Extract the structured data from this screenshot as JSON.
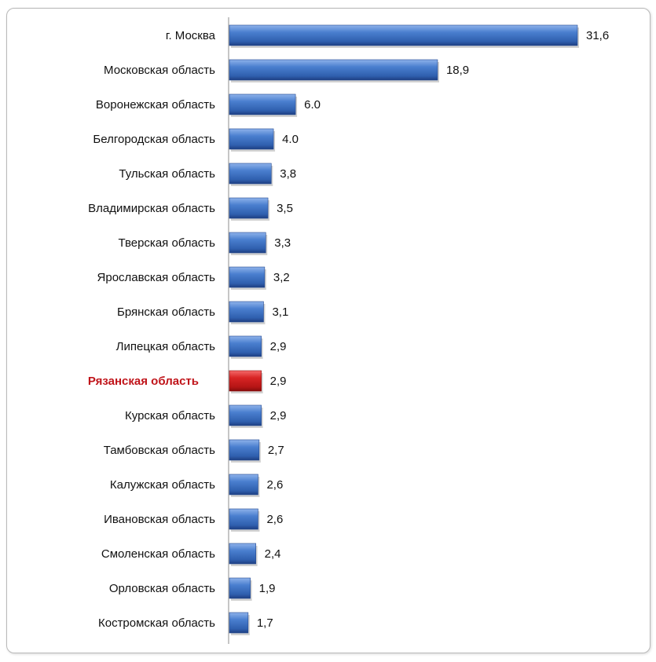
{
  "chart_data": {
    "type": "bar",
    "orientation": "horizontal",
    "categories": [
      "г. Москва",
      "Московская область",
      "Воронежская область",
      "Белгородская область",
      "Тульская область",
      "Владимирская область",
      "Тверская область",
      "Ярославская область",
      "Брянская область",
      "Липецкая область",
      "Рязанская область",
      "Курская область",
      "Тамбовская область",
      "Калужская область",
      "Ивановская область",
      "Смоленская область",
      "Орловская область",
      "Костромская область"
    ],
    "values": [
      31.6,
      18.9,
      6.0,
      4.0,
      3.8,
      3.5,
      3.3,
      3.2,
      3.1,
      2.9,
      2.9,
      2.9,
      2.7,
      2.6,
      2.6,
      2.4,
      1.9,
      1.7
    ],
    "value_labels": [
      "31,6",
      "18,9",
      "6.0",
      "4.0",
      "3,8",
      "3,5",
      "3,3",
      "3,2",
      "3,1",
      "2,9",
      "2,9",
      "2,9",
      "2,7",
      "2,6",
      "2,6",
      "2,4",
      "1,9",
      "1,7"
    ],
    "highlight_category": "Рязанская область",
    "colors": {
      "bar": "#3f73c4",
      "bar_dark": "#20468f",
      "bar_light": "#7fa6e3",
      "highlight": "#d42020",
      "highlight_dark": "#8e0d0d",
      "highlight_light": "#f05050",
      "highlight_label": "#c0141a",
      "axis": "#8c8c8c"
    },
    "xlim": [
      0,
      31.6
    ],
    "grid": false,
    "legend": "none"
  }
}
